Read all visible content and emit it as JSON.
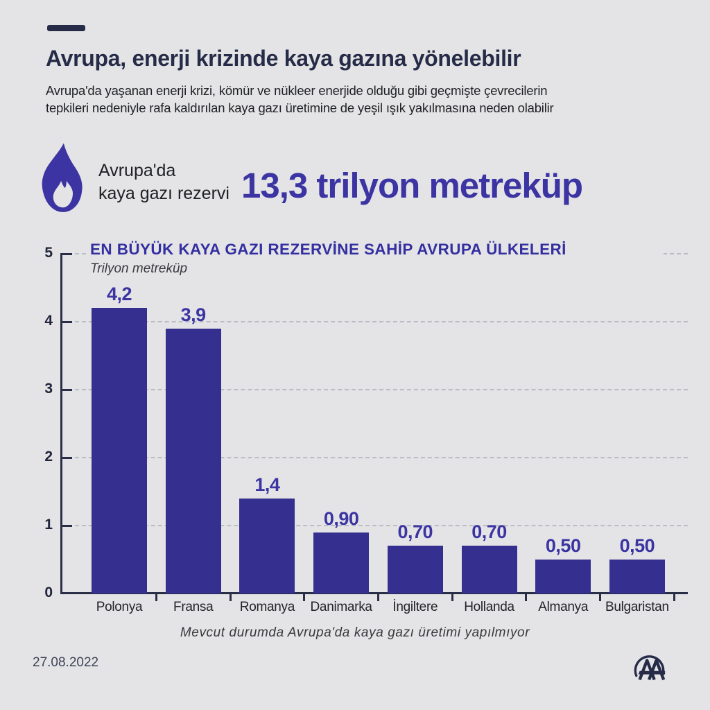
{
  "page": {
    "background": "#e4e4e6"
  },
  "colors": {
    "navy": "#262c48",
    "accent_indigo": "#3b34a2",
    "bar_indigo": "#352f90",
    "grid_dash": "#babdc3",
    "body_text": "#1f2023"
  },
  "header": {
    "title": "Avrupa, enerji krizinde kaya gazına yönelebilir",
    "subtitle_line1": "Avrupa'da yaşanan enerji krizi, kömür ve nükleer enerjide olduğu gibi geçmişte çevrecilerin",
    "subtitle_line2": "tepkileri nedeniyle rafa kaldırılan kaya gazı üretimine de yeşil ışık yakılmasına neden olabilir"
  },
  "highlight": {
    "icon": "flame-icon",
    "label_line1": "Avrupa'da",
    "label_line2": "kaya gazı rezervi",
    "value": "13,3 trilyon metreküp"
  },
  "chart_data": {
    "type": "bar",
    "title": "EN BÜYÜK KAYA GAZI REZERVİNE SAHİP AVRUPA ÜLKELERİ",
    "unit_label": "Trilyon metreküp",
    "categories": [
      "Polonya",
      "Fransa",
      "Romanya",
      "Danimarka",
      "İngiltere",
      "Hollanda",
      "Almanya",
      "Bulgaristan"
    ],
    "values": [
      4.2,
      3.9,
      1.4,
      0.9,
      0.7,
      0.7,
      0.5,
      0.5
    ],
    "value_labels": [
      "4,2",
      "3,9",
      "1,4",
      "0,90",
      "0,70",
      "0,70",
      "0,50",
      "0,50"
    ],
    "ylim": [
      0,
      5
    ],
    "yticks": [
      0,
      1,
      2,
      3,
      4,
      5
    ],
    "bar_color": "#352f90",
    "value_label_color": "#3b34a2",
    "grid": "horizontal-dashed",
    "legend": "none"
  },
  "footer": {
    "note": "Mevcut durumda Avrupa'da kaya gazı üretimi yapılmıyor",
    "date": "27.08.2022",
    "logo": "aa-logo",
    "logo_text": "AA"
  }
}
